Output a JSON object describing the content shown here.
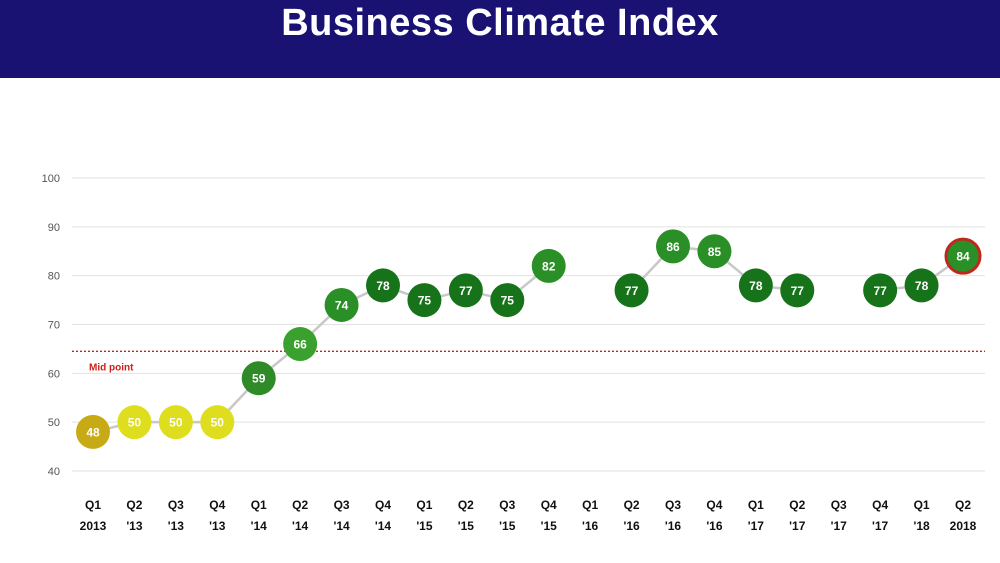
{
  "header": {
    "title": "Business Climate Index"
  },
  "chart_data": {
    "type": "line",
    "title": "Business Climate Index",
    "ylim": [
      40,
      100
    ],
    "yticks": [
      40,
      50,
      60,
      70,
      80,
      90,
      100
    ],
    "grid": true,
    "categories": [
      [
        "Q1",
        "2013"
      ],
      [
        "Q2",
        "'13"
      ],
      [
        "Q3",
        "'13"
      ],
      [
        "Q4",
        "'13"
      ],
      [
        "Q1",
        "'14"
      ],
      [
        "Q2",
        "'14"
      ],
      [
        "Q3",
        "'14"
      ],
      [
        "Q4",
        "'14"
      ],
      [
        "Q1",
        "'15"
      ],
      [
        "Q2",
        "'15"
      ],
      [
        "Q3",
        "'15"
      ],
      [
        "Q4",
        "'15"
      ],
      [
        "Q1",
        "'16"
      ],
      [
        "Q2",
        "'16"
      ],
      [
        "Q3",
        "'16"
      ],
      [
        "Q4",
        "'16"
      ],
      [
        "Q1",
        "'17"
      ],
      [
        "Q2",
        "'17"
      ],
      [
        "Q3",
        "'17"
      ],
      [
        "Q4",
        "'17"
      ],
      [
        "Q1",
        "'18"
      ],
      [
        "Q2",
        "2018"
      ]
    ],
    "values": [
      48,
      50,
      50,
      50,
      59,
      66,
      74,
      78,
      75,
      77,
      75,
      82,
      null,
      77,
      86,
      85,
      78,
      77,
      null,
      77,
      78,
      84
    ],
    "marker_colors": [
      "#c8aa14",
      "#dede1e",
      "#dede1e",
      "#dede1e",
      "#2f8a28",
      "#3aa02e",
      "#2a8f26",
      "#16731a",
      "#16731a",
      "#16731a",
      "#16731a",
      "#2a8f26",
      null,
      "#16731a",
      "#2a8f26",
      "#2a8f26",
      "#16731a",
      "#16731a",
      null,
      "#16731a",
      "#16731a",
      "#2a8f26"
    ],
    "highlight_last": true,
    "highlight_color": "#c0281e",
    "line_color": "#c8c8c8",
    "reference_line": {
      "value": 64.5,
      "label": "Mid point",
      "color": "#d0201a"
    }
  }
}
